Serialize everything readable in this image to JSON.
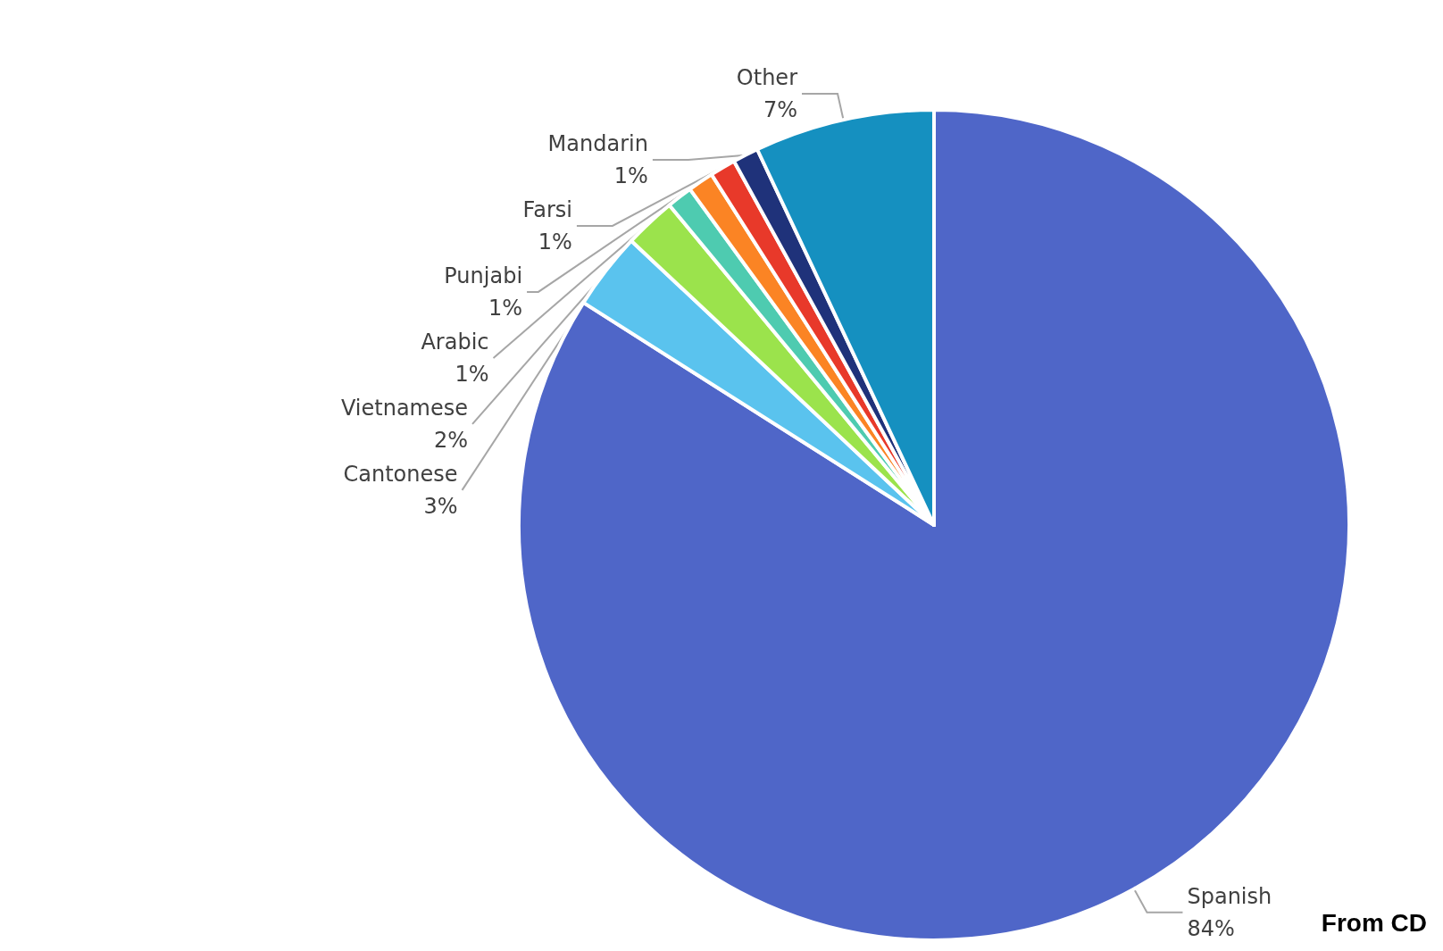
{
  "chart_data": {
    "type": "pie",
    "categories": [
      "Spanish",
      "Cantonese",
      "Vietnamese",
      "Arabic",
      "Punjabi",
      "Farsi",
      "Mandarin",
      "Other"
    ],
    "values": [
      84,
      3,
      2,
      1,
      1,
      1,
      1,
      7
    ],
    "value_labels": [
      "84%",
      "3%",
      "2%",
      "1%",
      "1%",
      "1%",
      "1%",
      "7%"
    ],
    "colors": [
      "#4f66c8",
      "#5ac3ee",
      "#9be34c",
      "#4ecbb0",
      "#fb8424",
      "#e8392a",
      "#1f327a",
      "#1590c0"
    ],
    "legend": false,
    "annotations": [
      "From CD"
    ]
  }
}
